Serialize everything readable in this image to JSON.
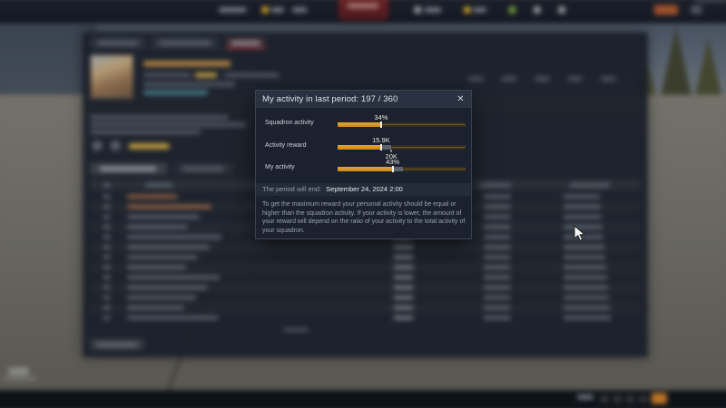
{
  "modal": {
    "title": "My activity in last period: 197 / 360",
    "close_icon": "✕",
    "bars": [
      {
        "label": "Squadron activity",
        "value_label": "34%",
        "fill_pct": 34,
        "ghost_pct": 34,
        "below_label": "",
        "below_pct": 0
      },
      {
        "label": "Activity reward",
        "value_label": "15.9K",
        "fill_pct": 34,
        "ghost_pct": 42,
        "below_label": "20K",
        "below_pct": 42
      },
      {
        "label": "My activity",
        "value_label": "43%",
        "fill_pct": 43,
        "ghost_pct": 51,
        "below_label": "",
        "below_pct": 0
      }
    ],
    "period": {
      "label": "The period will end:",
      "value": "September 24, 2024 2:00"
    },
    "description": "To get the maximum reward your personal activity should be equal or higher than the squadron activity. If your activity is lower, the amount of your reward will depend on the ratio of your activity to the total activity of your squadron."
  },
  "colors": {
    "accent_orange": "#d5921f",
    "ghost_gray": "#5d636b",
    "modal_bg": "#1b212e",
    "modal_titlebar_bg": "#2a3140",
    "active_tab_red": "#a33a36"
  },
  "background": {
    "table_row_count": 13
  }
}
